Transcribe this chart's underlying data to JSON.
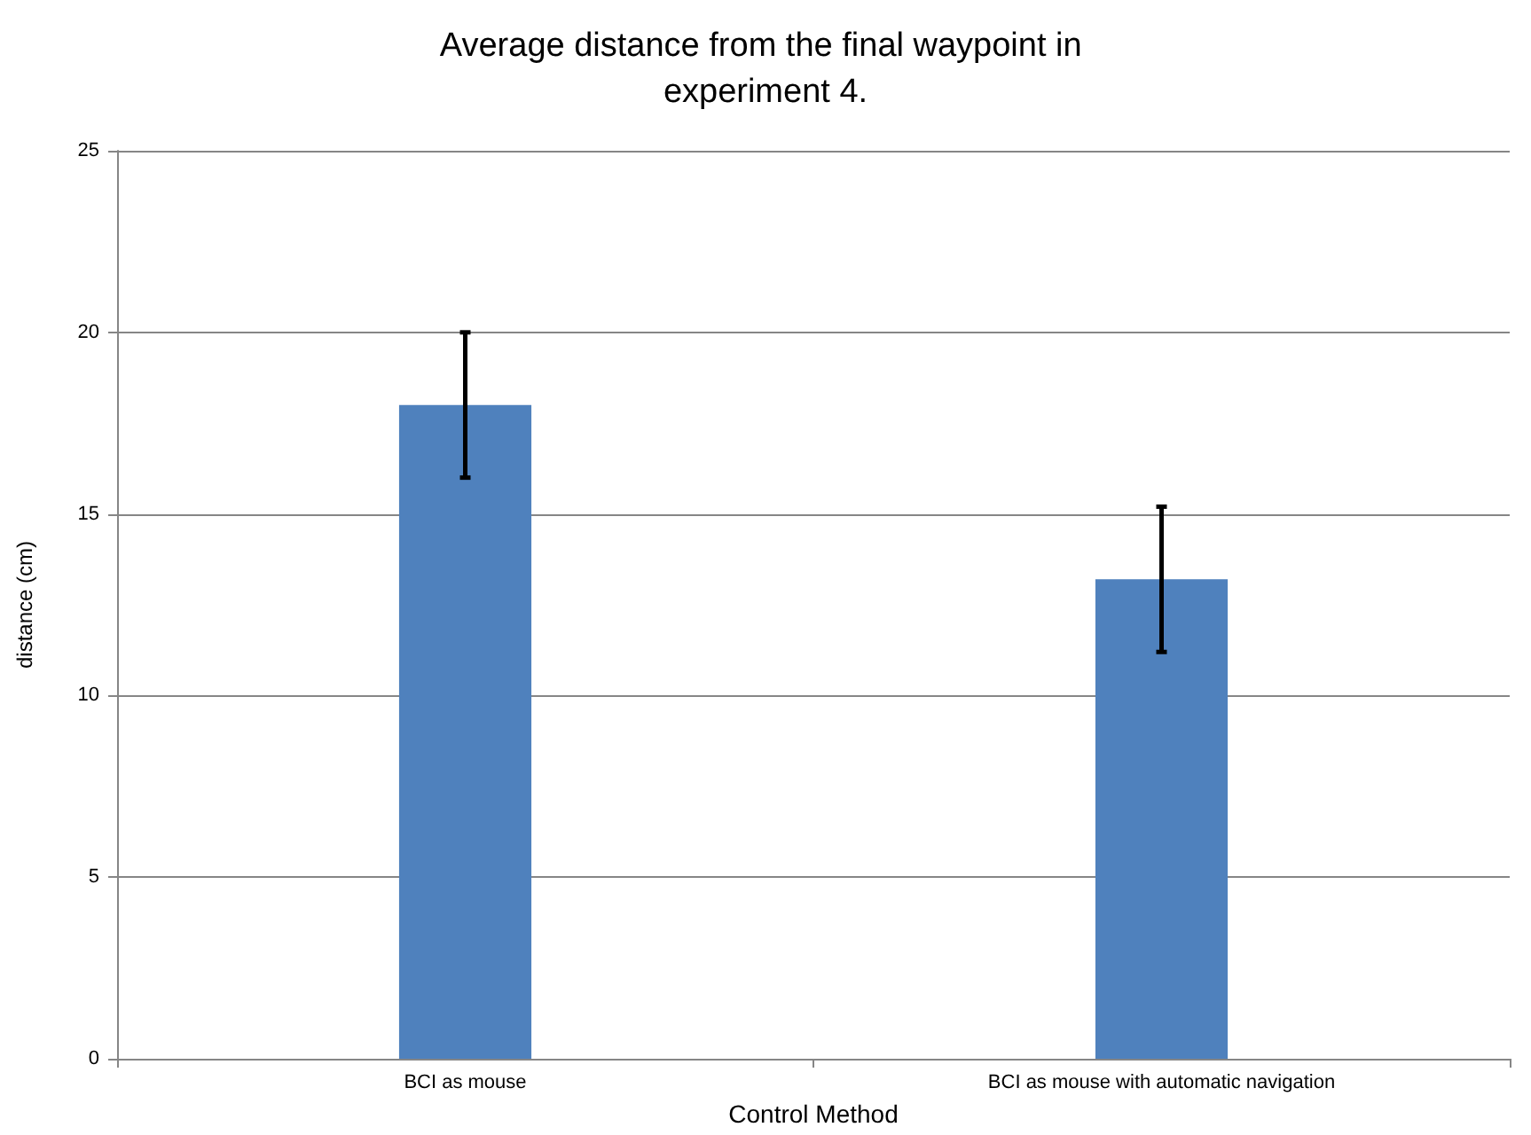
{
  "chart_data": {
    "type": "bar",
    "title": "Average distance from the final waypoint in experiment 4.",
    "xlabel": "Control Method",
    "ylabel": "distance (cm)",
    "categories": [
      "BCI as mouse",
      "BCI as mouse with automatic navigation"
    ],
    "values": [
      18,
      13.2
    ],
    "errors": [
      2,
      2
    ],
    "color": "#4f81bd",
    "ylim": [
      0,
      25
    ],
    "yticks": [
      0,
      5,
      10,
      15,
      20,
      25
    ],
    "grid": "y"
  }
}
